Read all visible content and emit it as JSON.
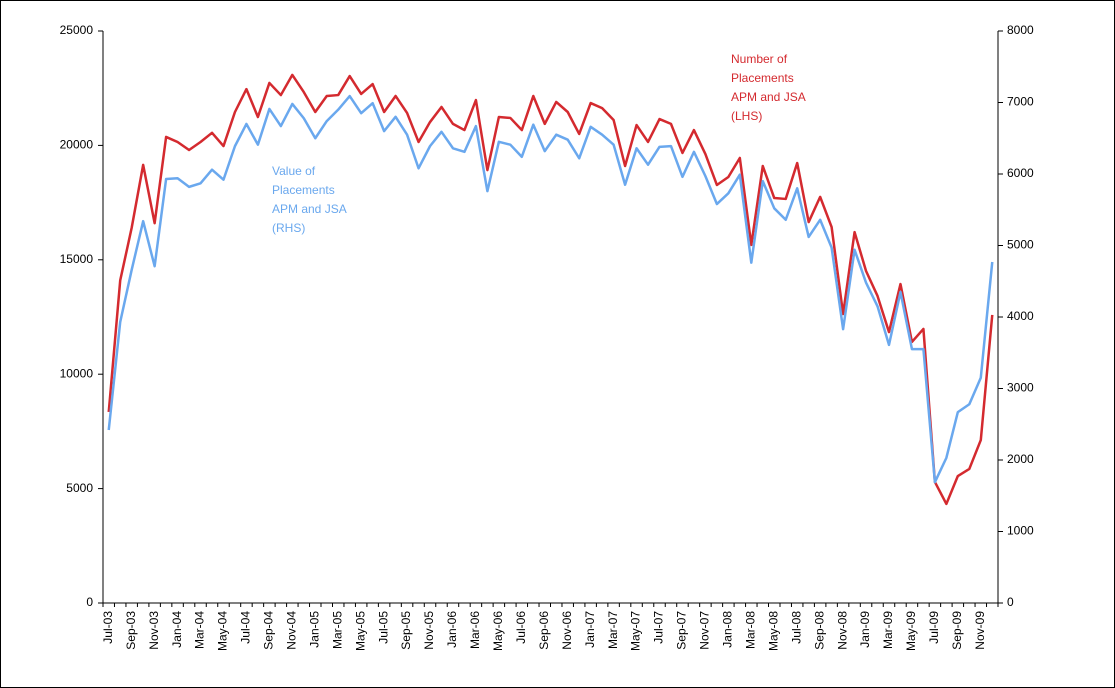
{
  "chart_data": {
    "type": "line",
    "categories": [
      "Jul-03",
      null,
      "Sep-03",
      null,
      "Nov-03",
      null,
      "Jan-04",
      null,
      "Mar-04",
      null,
      "May-04",
      null,
      "Jul-04",
      null,
      "Sep-04",
      null,
      "Nov-04",
      null,
      "Jan-05",
      null,
      "Mar-05",
      null,
      "May-05",
      null,
      "Jul-05",
      null,
      "Sep-05",
      null,
      "Nov-05",
      null,
      "Jan-06",
      null,
      "Mar-06",
      null,
      "May-06",
      null,
      "Jul-06",
      null,
      "Sep-06",
      null,
      "Nov-06",
      null,
      "Jan-07",
      null,
      "Mar-07",
      null,
      "May-07",
      null,
      "Jul-07",
      null,
      "Sep-07",
      null,
      "Nov-07",
      null,
      "Jan-08",
      null,
      "Mar-08",
      null,
      "May-08",
      null,
      "Jul-08",
      null,
      "Sep-08",
      null,
      "Nov-08",
      null,
      "Jan-09",
      null,
      "Mar-09",
      null,
      "May-09",
      null,
      "Jul-09",
      null,
      "Sep-09",
      null,
      "Nov-09",
      null
    ],
    "series": [
      {
        "label": [
          "Number of",
          "Placements",
          "APM  and JSA",
          "(LHS)"
        ],
        "color": "#d42a2f",
        "axis": "y",
        "values": [
          8350,
          14100,
          16400,
          19150,
          16600,
          20370,
          20150,
          19800,
          20150,
          20550,
          19970,
          21460,
          22460,
          21240,
          22730,
          22200,
          23080,
          22330,
          21460,
          22160,
          22200,
          23030,
          22250,
          22680,
          21460,
          22160,
          21420,
          20150,
          21020,
          21680,
          20940,
          20670,
          21980,
          18920,
          21240,
          21200,
          20670,
          22160,
          20940,
          21900,
          21460,
          20500,
          21850,
          21630,
          21110,
          19100,
          20890,
          20150,
          21150,
          20940,
          19670,
          20670,
          19620,
          18270,
          18620,
          19450,
          15650,
          19100,
          17700,
          17660,
          19230,
          16650,
          17750,
          16430,
          12630,
          16210,
          14510,
          13420,
          11840,
          13940,
          11410,
          11980,
          5290,
          4330,
          5550,
          5860,
          7120,
          12590
        ]
      },
      {
        "label": [
          "Value of",
          "Placements",
          "APM  and JSA",
          "(RHS)"
        ],
        "color": "#6aa8ee",
        "axis": "y2",
        "values": [
          2420,
          3930,
          4660,
          5340,
          4710,
          5930,
          5940,
          5820,
          5870,
          6060,
          5920,
          6390,
          6700,
          6410,
          6910,
          6670,
          6980,
          6780,
          6500,
          6740,
          6900,
          7090,
          6850,
          6990,
          6600,
          6800,
          6550,
          6080,
          6390,
          6590,
          6360,
          6310,
          6670,
          5760,
          6450,
          6410,
          6240,
          6690,
          6320,
          6550,
          6480,
          6220,
          6660,
          6550,
          6410,
          5850,
          6360,
          6130,
          6380,
          6390,
          5960,
          6310,
          5970,
          5580,
          5730,
          5990,
          4760,
          5900,
          5520,
          5360,
          5800,
          5120,
          5360,
          4970,
          3830,
          4940,
          4480,
          4150,
          3610,
          4350,
          3550,
          3550,
          1690,
          2030,
          2670,
          2780,
          3150,
          4770
        ]
      }
    ],
    "ylim": [
      0,
      25000
    ],
    "yticks": [
      0,
      5000,
      10000,
      15000,
      20000,
      25000
    ],
    "y2lim": [
      0,
      8000
    ],
    "y2ticks": [
      0,
      1000,
      2000,
      3000,
      4000,
      5000,
      6000,
      7000,
      8000
    ]
  }
}
